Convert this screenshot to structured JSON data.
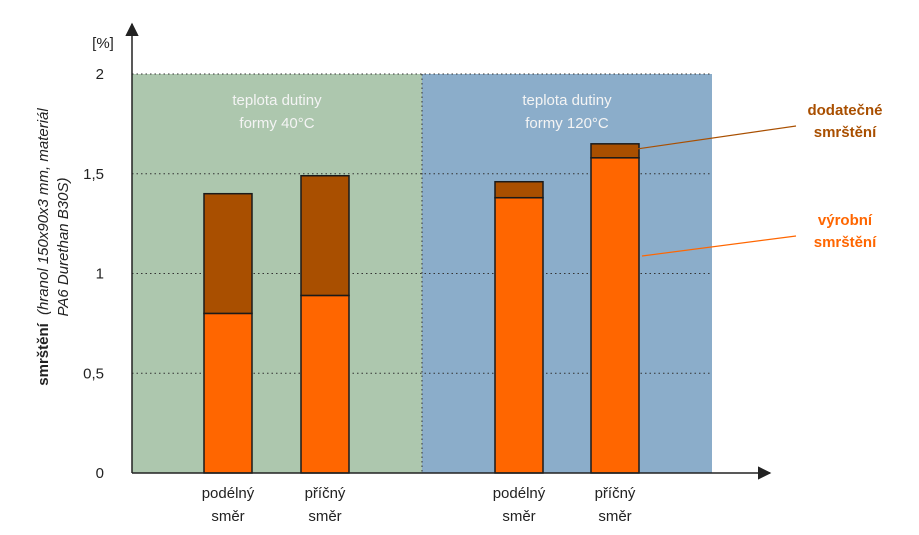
{
  "chart_data": {
    "type": "bar",
    "stacked": true,
    "y_unit": "[%]",
    "ylabel_bold": "smrštění",
    "ylabel_italic_line1": "(hranol 150x90x3 mm, materiál",
    "ylabel_italic_line2": "PA6 Durethan B30S)",
    "ylim": [
      0,
      2
    ],
    "y_ticks": [
      {
        "value": 0,
        "label": "0"
      },
      {
        "value": 0.5,
        "label": "0,5"
      },
      {
        "value": 1,
        "label": "1"
      },
      {
        "value": 1.5,
        "label": "1,5"
      },
      {
        "value": 2,
        "label": "2"
      }
    ],
    "grid": true,
    "regions": [
      {
        "title_line1": "teplota dutiny",
        "title_line2": "formy 40°C",
        "color": "#adc7ae"
      },
      {
        "title_line1": "teplota dutiny",
        "title_line2": "formy 120°C",
        "color": "#8badca"
      }
    ],
    "categories": [
      {
        "line1": "podélný",
        "line2": "směr"
      },
      {
        "line1": "příčný",
        "line2": "směr"
      },
      {
        "line1": "podélný",
        "line2": "směr"
      },
      {
        "line1": "příčný",
        "line2": "směr"
      }
    ],
    "series": [
      {
        "name_line1": "výrobní",
        "name_line2": "smrštění",
        "color": "#ff6600",
        "values": [
          0.8,
          0.89,
          1.38,
          1.58
        ]
      },
      {
        "name_line1": "dodatečné",
        "name_line2": "smrštění",
        "color": "#a94f00",
        "values": [
          0.6,
          0.6,
          0.08,
          0.07
        ]
      }
    ]
  }
}
